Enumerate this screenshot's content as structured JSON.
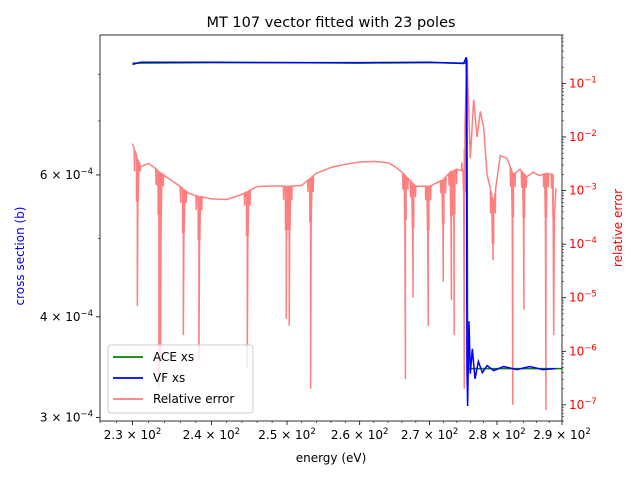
{
  "chart_data": {
    "type": "line",
    "title": "MT 107 vector fitted with 23 poles",
    "xlabel": "energy (eV)",
    "ylabel_left": "cross section (b)",
    "ylabel_right": "relative error",
    "x_scale": "log",
    "y_left_scale": "log",
    "y_right_scale": "log",
    "xlim": [
      226,
      290
    ],
    "ylim_left": [
      0.000297,
      0.000895
    ],
    "ylim_right": [
      5e-08,
      0.8
    ],
    "x_ticks": [
      {
        "value": 230,
        "base": "2.3 × 10",
        "exp": "2"
      },
      {
        "value": 240,
        "base": "2.4 × 10",
        "exp": "2"
      },
      {
        "value": 250,
        "base": "2.5 × 10",
        "exp": "2"
      },
      {
        "value": 260,
        "base": "2.6 × 10",
        "exp": "2"
      },
      {
        "value": 270,
        "base": "2.7 × 10",
        "exp": "2"
      },
      {
        "value": 280,
        "base": "2.8 × 10",
        "exp": "2"
      },
      {
        "value": 290,
        "base": "2.9 × 10",
        "exp": "2"
      }
    ],
    "y_left_ticks": [
      {
        "value": 0.0003,
        "base": "3 × 10",
        "exp": "−4"
      },
      {
        "value": 0.0004,
        "base": "4 × 10",
        "exp": "−4"
      },
      {
        "value": 0.0006,
        "base": "6 × 10",
        "exp": "−4"
      }
    ],
    "y_right_ticks": [
      {
        "value": 1e-07,
        "base": "10",
        "exp": "−7"
      },
      {
        "value": 1e-06,
        "base": "10",
        "exp": "−6"
      },
      {
        "value": 1e-05,
        "base": "10",
        "exp": "−5"
      },
      {
        "value": 0.0001,
        "base": "10",
        "exp": "−4"
      },
      {
        "value": 0.001,
        "base": "10",
        "exp": "−3"
      },
      {
        "value": 0.01,
        "base": "10",
        "exp": "−2"
      },
      {
        "value": 0.1,
        "base": "10",
        "exp": "−1"
      }
    ],
    "legend_position": "lower-left",
    "series": [
      {
        "name": "ACE xs",
        "axis": "left",
        "color": "#008000",
        "points": [
          [
            230,
            0.000826
          ],
          [
            240,
            0.000827
          ],
          [
            250,
            0.000827
          ],
          [
            260,
            0.000826
          ],
          [
            270,
            0.000827
          ],
          [
            275.2,
            0.000826
          ],
          [
            275.5,
            0.00083
          ],
          [
            275.6,
            0.000345
          ],
          [
            290,
            0.000345
          ]
        ]
      },
      {
        "name": "VF xs",
        "axis": "left",
        "color": "#0000ff",
        "points": [
          [
            230,
            0.000823
          ],
          [
            231,
            0.000828
          ],
          [
            240,
            0.000828
          ],
          [
            250,
            0.000827
          ],
          [
            260,
            0.000827
          ],
          [
            270,
            0.000828
          ],
          [
            275,
            0.000825
          ],
          [
            275.4,
            0.00084
          ],
          [
            275.5,
            0.000345
          ],
          [
            275.6,
            0.00031
          ],
          [
            275.8,
            0.000395
          ],
          [
            276,
            0.00034
          ],
          [
            276.3,
            0.000365
          ],
          [
            276.7,
            0.000335
          ],
          [
            277.2,
            0.000352
          ],
          [
            277.8,
            0.000341
          ],
          [
            278.5,
            0.000348
          ],
          [
            279.5,
            0.000343
          ],
          [
            281,
            0.000347
          ],
          [
            283,
            0.000344
          ],
          [
            285,
            0.000347
          ],
          [
            287,
            0.000344
          ],
          [
            289,
            0.000345
          ]
        ]
      },
      {
        "name": "Relative error",
        "axis": "right",
        "color": "#ff7f7f",
        "base": [
          [
            230,
            0.0075
          ],
          [
            231,
            0.0028
          ],
          [
            232,
            0.0032
          ],
          [
            233,
            0.0025
          ],
          [
            234,
            0.0019
          ],
          [
            235,
            0.0015
          ],
          [
            236,
            0.0012
          ],
          [
            237,
            0.0009
          ],
          [
            238,
            0.0008
          ],
          [
            240,
            0.0007
          ],
          [
            242,
            0.00068
          ],
          [
            244,
            0.00085
          ],
          [
            246,
            0.00118
          ],
          [
            248,
            0.00122
          ],
          [
            250,
            0.0012
          ],
          [
            252,
            0.00125
          ],
          [
            254,
            0.0021
          ],
          [
            256,
            0.0027
          ],
          [
            258,
            0.0031
          ],
          [
            260,
            0.0034
          ],
          [
            262,
            0.0035
          ],
          [
            264,
            0.0033
          ],
          [
            265,
            0.0028
          ],
          [
            266,
            0.0022
          ],
          [
            268,
            0.0012
          ],
          [
            270,
            0.0012
          ],
          [
            272,
            0.0016
          ],
          [
            273,
            0.0022
          ],
          [
            274,
            0.0025
          ],
          [
            275,
            0.0023
          ],
          [
            275.5,
            0.3
          ],
          [
            276,
            0.004
          ],
          [
            276.5,
            0.05
          ],
          [
            277,
            0.01
          ],
          [
            277.5,
            0.03
          ],
          [
            278,
            0.015
          ],
          [
            278.5,
            0.002
          ],
          [
            279.5,
            0.0006
          ],
          [
            280.5,
            0.0045
          ],
          [
            281.5,
            0.004
          ],
          [
            282.5,
            0.002
          ],
          [
            283.5,
            0.0025
          ],
          [
            284.5,
            0.0018
          ],
          [
            285.5,
            0.0022
          ],
          [
            286.5,
            0.0019
          ],
          [
            287.5,
            0.0021
          ],
          [
            288.5,
            0.002
          ]
        ],
        "dips": [
          [
            230.6,
            7e-06
          ],
          [
            233.3,
            2e-07
          ],
          [
            233.5,
            6e-07
          ],
          [
            236.4,
            2e-06
          ],
          [
            238.4,
            7e-07
          ],
          [
            244.7,
            5e-07
          ],
          [
            249.9,
            4e-06
          ],
          [
            250.3,
            3e-06
          ],
          [
            253.2,
            2e-07
          ],
          [
            266.5,
            3e-07
          ],
          [
            267.6,
            1e-05
          ],
          [
            269.8,
            3e-06
          ],
          [
            272,
            2e-05
          ],
          [
            273.2,
            9e-06
          ],
          [
            273.6,
            2e-06
          ],
          [
            275.1,
            2e-07
          ],
          [
            279.4,
            5e-05
          ],
          [
            282.4,
            1e-07
          ],
          [
            284.1,
            6e-06
          ],
          [
            287.5,
            8e-08
          ],
          [
            288.7,
            2e-06
          ]
        ]
      }
    ]
  }
}
